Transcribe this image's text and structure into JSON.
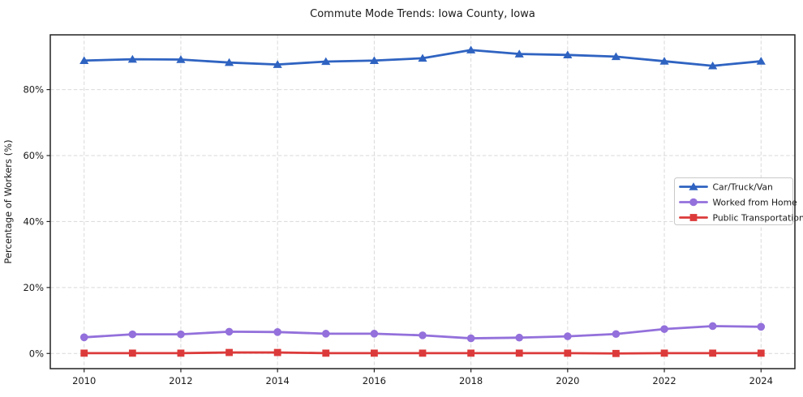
{
  "figure": {
    "title": "Commute Mode Trends: Iowa County, Iowa"
  },
  "chart_data": {
    "type": "line",
    "title": "Commute Mode Trends: Iowa County, Iowa",
    "xlabel": "",
    "ylabel": "Percentage of Workers (%)",
    "x": [
      2010,
      2011,
      2012,
      2013,
      2014,
      2015,
      2016,
      2017,
      2018,
      2019,
      2020,
      2021,
      2022,
      2023,
      2024
    ],
    "series": [
      {
        "name": "Car/Truck/Van",
        "slug": "car-truck-van",
        "color": "#2f63c1",
        "marker": "triangle",
        "values": [
          88.8,
          89.2,
          89.1,
          88.2,
          87.6,
          88.5,
          88.8,
          89.5,
          92.0,
          90.8,
          90.5,
          90.0,
          88.6,
          87.2,
          88.6
        ]
      },
      {
        "name": "Worked from Home",
        "slug": "worked-from-home",
        "color": "#9370db",
        "marker": "circle",
        "values": [
          4.9,
          5.8,
          5.8,
          6.6,
          6.5,
          6.0,
          6.0,
          5.5,
          4.6,
          4.8,
          5.2,
          5.9,
          7.4,
          8.3,
          8.1
        ]
      },
      {
        "name": "Public Transportation",
        "slug": "public-transportation",
        "color": "#dc3a3a",
        "marker": "square",
        "values": [
          0.1,
          0.1,
          0.1,
          0.3,
          0.3,
          0.1,
          0.1,
          0.1,
          0.1,
          0.1,
          0.1,
          0.0,
          0.1,
          0.1,
          0.1
        ]
      }
    ],
    "xticks": [
      2010,
      2012,
      2014,
      2016,
      2018,
      2020,
      2022,
      2024
    ],
    "xtick_labels": [
      "2010",
      "2012",
      "2014",
      "2016",
      "2018",
      "2020",
      "2022",
      "2024"
    ],
    "yticks": [
      0,
      20,
      40,
      60,
      80
    ],
    "ytick_labels": [
      "0%",
      "20%",
      "40%",
      "60%",
      "80%"
    ],
    "xlim": [
      2009.3,
      2024.7
    ],
    "ylim": [
      -4.6,
      96.6
    ],
    "grid": true,
    "grid_style": "dashed",
    "legend_position": "center-right",
    "legend_entries": [
      "Car/Truck/Van",
      "Worked from Home",
      "Public Transportation"
    ],
    "colors": {
      "background": "#ffffff",
      "spine": "#222222",
      "grid": "#d9d9d9",
      "text": "#1a1a1a",
      "legend_border": "#c9c9c9"
    }
  }
}
